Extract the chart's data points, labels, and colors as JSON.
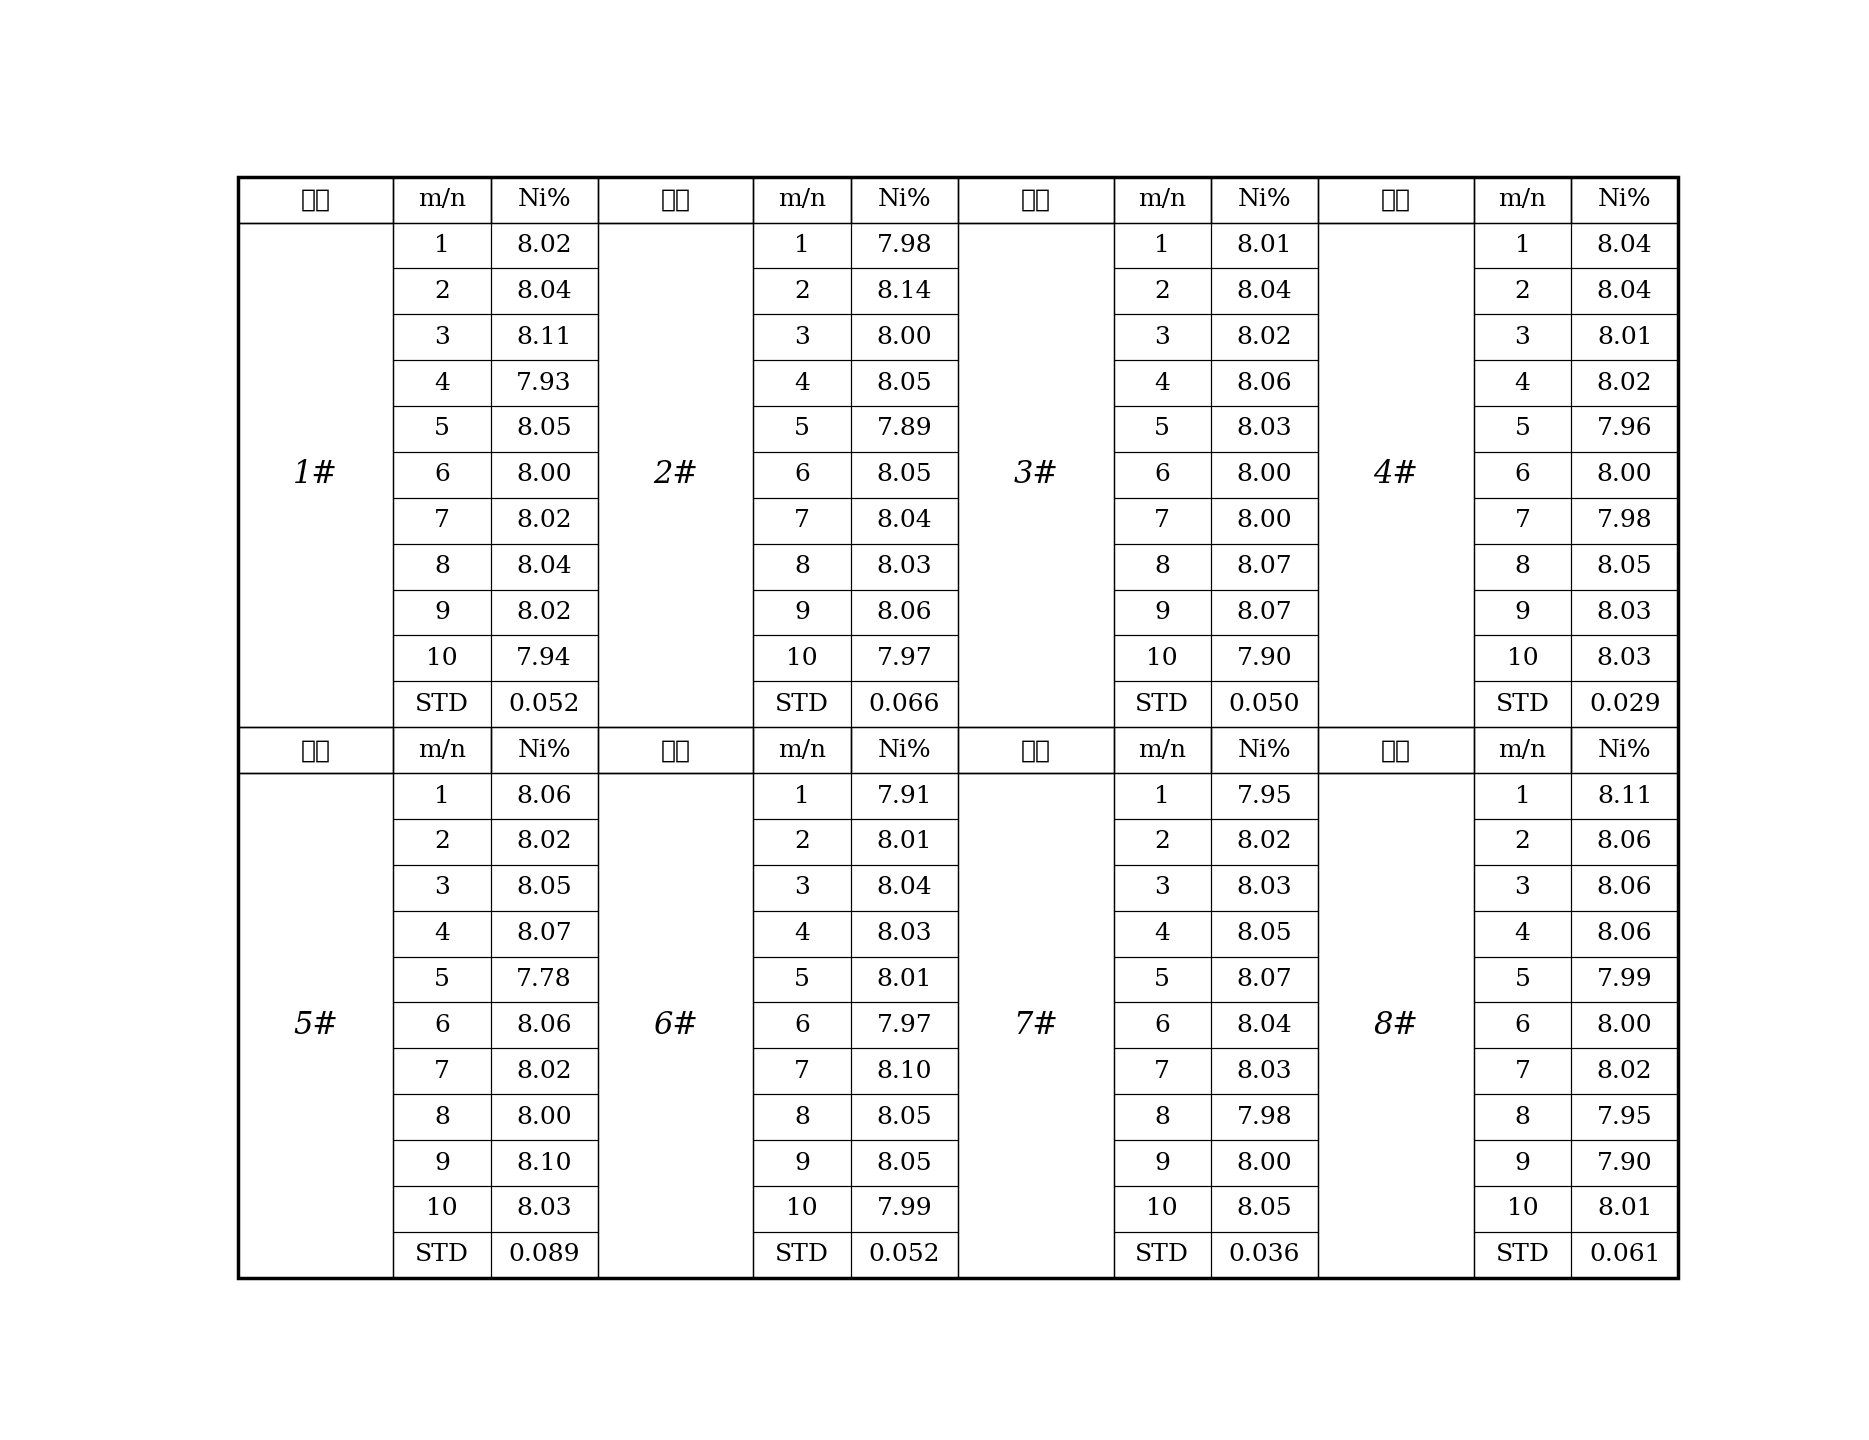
{
  "sections": [
    {
      "label": "1#",
      "data": [
        [
          "1",
          "8.02"
        ],
        [
          "2",
          "8.04"
        ],
        [
          "3",
          "8.11"
        ],
        [
          "4",
          "7.93"
        ],
        [
          "5",
          "8.05"
        ],
        [
          "6",
          "8.00"
        ],
        [
          "7",
          "8.02"
        ],
        [
          "8",
          "8.04"
        ],
        [
          "9",
          "8.02"
        ],
        [
          "10",
          "7.94"
        ],
        [
          "STD",
          "0.052"
        ]
      ]
    },
    {
      "label": "2#",
      "data": [
        [
          "1",
          "7.98"
        ],
        [
          "2",
          "8.14"
        ],
        [
          "3",
          "8.00"
        ],
        [
          "4",
          "8.05"
        ],
        [
          "5",
          "7.89"
        ],
        [
          "6",
          "8.05"
        ],
        [
          "7",
          "8.04"
        ],
        [
          "8",
          "8.03"
        ],
        [
          "9",
          "8.06"
        ],
        [
          "10",
          "7.97"
        ],
        [
          "STD",
          "0.066"
        ]
      ]
    },
    {
      "label": "3#",
      "data": [
        [
          "1",
          "8.01"
        ],
        [
          "2",
          "8.04"
        ],
        [
          "3",
          "8.02"
        ],
        [
          "4",
          "8.06"
        ],
        [
          "5",
          "8.03"
        ],
        [
          "6",
          "8.00"
        ],
        [
          "7",
          "8.00"
        ],
        [
          "8",
          "8.07"
        ],
        [
          "9",
          "8.07"
        ],
        [
          "10",
          "7.90"
        ],
        [
          "STD",
          "0.050"
        ]
      ]
    },
    {
      "label": "4#",
      "data": [
        [
          "1",
          "8.04"
        ],
        [
          "2",
          "8.04"
        ],
        [
          "3",
          "8.01"
        ],
        [
          "4",
          "8.02"
        ],
        [
          "5",
          "7.96"
        ],
        [
          "6",
          "8.00"
        ],
        [
          "7",
          "7.98"
        ],
        [
          "8",
          "8.05"
        ],
        [
          "9",
          "8.03"
        ],
        [
          "10",
          "8.03"
        ],
        [
          "STD",
          "0.029"
        ]
      ]
    },
    {
      "label": "5#",
      "data": [
        [
          "1",
          "8.06"
        ],
        [
          "2",
          "8.02"
        ],
        [
          "3",
          "8.05"
        ],
        [
          "4",
          "8.07"
        ],
        [
          "5",
          "7.78"
        ],
        [
          "6",
          "8.06"
        ],
        [
          "7",
          "8.02"
        ],
        [
          "8",
          "8.00"
        ],
        [
          "9",
          "8.10"
        ],
        [
          "10",
          "8.03"
        ],
        [
          "STD",
          "0.089"
        ]
      ]
    },
    {
      "label": "6#",
      "data": [
        [
          "1",
          "7.91"
        ],
        [
          "2",
          "8.01"
        ],
        [
          "3",
          "8.04"
        ],
        [
          "4",
          "8.03"
        ],
        [
          "5",
          "8.01"
        ],
        [
          "6",
          "7.97"
        ],
        [
          "7",
          "8.10"
        ],
        [
          "8",
          "8.05"
        ],
        [
          "9",
          "8.05"
        ],
        [
          "10",
          "7.99"
        ],
        [
          "STD",
          "0.052"
        ]
      ]
    },
    {
      "label": "7#",
      "data": [
        [
          "1",
          "7.95"
        ],
        [
          "2",
          "8.02"
        ],
        [
          "3",
          "8.03"
        ],
        [
          "4",
          "8.05"
        ],
        [
          "5",
          "8.07"
        ],
        [
          "6",
          "8.04"
        ],
        [
          "7",
          "8.03"
        ],
        [
          "8",
          "7.98"
        ],
        [
          "9",
          "8.00"
        ],
        [
          "10",
          "8.05"
        ],
        [
          "STD",
          "0.036"
        ]
      ]
    },
    {
      "label": "8#",
      "data": [
        [
          "1",
          "8.11"
        ],
        [
          "2",
          "8.06"
        ],
        [
          "3",
          "8.06"
        ],
        [
          "4",
          "8.06"
        ],
        [
          "5",
          "7.99"
        ],
        [
          "6",
          "8.00"
        ],
        [
          "7",
          "8.02"
        ],
        [
          "8",
          "7.95"
        ],
        [
          "9",
          "7.90"
        ],
        [
          "10",
          "8.01"
        ],
        [
          "STD",
          "0.061"
        ]
      ]
    }
  ],
  "col_header": [
    "编号",
    "m/n",
    "Ni%"
  ],
  "bg_color": "#ffffff",
  "line_color": "#000000",
  "data_fontsize": 18,
  "header_fontsize": 18,
  "label_fontsize": 22
}
